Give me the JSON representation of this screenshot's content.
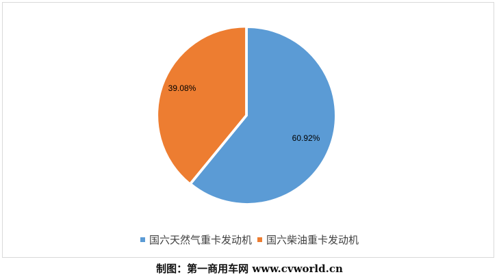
{
  "chart_data": {
    "type": "pie",
    "categories": [
      "国六天然气重卡发动机",
      "国六柴油重卡发动机"
    ],
    "values": [
      60.92,
      39.08
    ],
    "data_labels": [
      "60.92%",
      "39.08%"
    ],
    "colors": [
      "#5b9bd5",
      "#ed7d31"
    ],
    "legend_position": "bottom"
  },
  "caption": "制图：第一商用车网 www.cvworld.cn"
}
